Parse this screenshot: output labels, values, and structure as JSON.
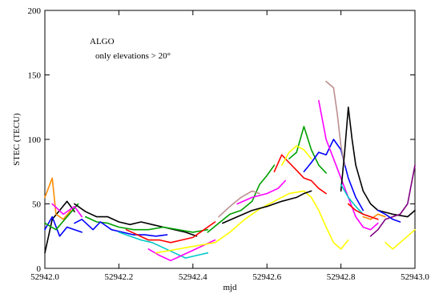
{
  "chart_data": {
    "type": "line",
    "xlabel": "mjd",
    "ylabel": "STEC (TECU)",
    "xlim": [
      52942.0,
      52943.0
    ],
    "ylim": [
      0,
      200
    ],
    "xticks": [
      "52942.0",
      "52942.2",
      "52942.4",
      "52942.6",
      "52942.8",
      "52943.0"
    ],
    "yticks": [
      "0",
      "50",
      "100",
      "150",
      "200"
    ],
    "xtick_values": [
      52942.0,
      52942.2,
      52942.4,
      52942.6,
      52942.8,
      52943.0
    ],
    "ytick_values": [
      0,
      50,
      100,
      150,
      200
    ],
    "annotations": [
      "ALGO",
      "only elevations > 20°"
    ],
    "grid": false,
    "legend": "none",
    "series": [
      {
        "color": "#000000",
        "points": [
          [
            52942.0,
            12
          ],
          [
            52942.02,
            38
          ],
          [
            52942.04,
            45
          ],
          [
            52942.06,
            52
          ],
          [
            52942.08,
            44
          ]
        ]
      },
      {
        "color": "#0000ff",
        "points": [
          [
            52942.0,
            30
          ],
          [
            52942.02,
            40
          ],
          [
            52942.04,
            25
          ],
          [
            52942.06,
            32
          ],
          [
            52942.08,
            30
          ],
          [
            52942.1,
            28
          ]
        ]
      },
      {
        "color": "#ff8c00",
        "points": [
          [
            52942.0,
            55
          ],
          [
            52942.02,
            70
          ],
          [
            52942.03,
            42
          ],
          [
            52942.05,
            38
          ],
          [
            52942.07,
            45
          ]
        ]
      },
      {
        "color": "#00a000",
        "points": [
          [
            52942.0,
            35
          ],
          [
            52942.03,
            30
          ],
          [
            52942.06,
            40
          ],
          [
            52942.09,
            50
          ]
        ]
      },
      {
        "color": "#ff00ff",
        "points": [
          [
            52942.02,
            50
          ],
          [
            52942.05,
            42
          ],
          [
            52942.08,
            48
          ],
          [
            52942.1,
            40
          ]
        ]
      },
      {
        "color": "#000000",
        "points": [
          [
            52942.08,
            50
          ],
          [
            52942.11,
            44
          ],
          [
            52942.14,
            40
          ],
          [
            52942.17,
            40
          ],
          [
            52942.2,
            36
          ],
          [
            52942.23,
            34
          ],
          [
            52942.26,
            36
          ],
          [
            52942.29,
            34
          ],
          [
            52942.32,
            32
          ],
          [
            52942.35,
            30
          ],
          [
            52942.38,
            28
          ],
          [
            52942.41,
            25
          ]
        ]
      },
      {
        "color": "#00a000",
        "points": [
          [
            52942.11,
            40
          ],
          [
            52942.14,
            36
          ],
          [
            52942.17,
            35
          ],
          [
            52942.2,
            32
          ],
          [
            52942.24,
            30
          ],
          [
            52942.28,
            30
          ],
          [
            52942.32,
            32
          ],
          [
            52942.36,
            30
          ],
          [
            52942.4,
            28
          ],
          [
            52942.44,
            30
          ]
        ]
      },
      {
        "color": "#0000ff",
        "points": [
          [
            52942.08,
            35
          ],
          [
            52942.1,
            38
          ],
          [
            52942.13,
            30
          ],
          [
            52942.15,
            36
          ],
          [
            52942.18,
            30
          ],
          [
            52942.21,
            28
          ],
          [
            52942.24,
            26
          ],
          [
            52942.27,
            26
          ],
          [
            52942.3,
            25
          ],
          [
            52942.33,
            26
          ]
        ]
      },
      {
        "color": "#00c8c8",
        "points": [
          [
            52942.2,
            28
          ],
          [
            52942.23,
            25
          ],
          [
            52942.26,
            22
          ],
          [
            52942.29,
            20
          ],
          [
            52942.32,
            16
          ],
          [
            52942.35,
            12
          ],
          [
            52942.38,
            8
          ],
          [
            52942.41,
            10
          ],
          [
            52942.44,
            12
          ]
        ]
      },
      {
        "color": "#ff0000",
        "points": [
          [
            52942.22,
            30
          ],
          [
            52942.25,
            26
          ],
          [
            52942.28,
            22
          ],
          [
            52942.31,
            22
          ],
          [
            52942.34,
            20
          ],
          [
            52942.37,
            22
          ],
          [
            52942.4,
            24
          ],
          [
            52942.43,
            30
          ],
          [
            52942.46,
            36
          ]
        ]
      },
      {
        "color": "#ff00ff",
        "points": [
          [
            52942.28,
            15
          ],
          [
            52942.31,
            10
          ],
          [
            52942.34,
            6
          ],
          [
            52942.37,
            10
          ],
          [
            52942.4,
            14
          ],
          [
            52942.43,
            18
          ],
          [
            52942.46,
            22
          ]
        ]
      },
      {
        "color": "#ffff00",
        "points": [
          [
            52942.3,
            12
          ],
          [
            52942.34,
            14
          ],
          [
            52942.38,
            16
          ],
          [
            52942.42,
            18
          ],
          [
            52942.46,
            20
          ],
          [
            52942.5,
            28
          ],
          [
            52942.54,
            38
          ],
          [
            52942.58,
            46
          ],
          [
            52942.62,
            52
          ],
          [
            52942.66,
            58
          ],
          [
            52942.7,
            60
          ],
          [
            52942.72,
            55
          ],
          [
            52942.74,
            45
          ],
          [
            52942.76,
            32
          ],
          [
            52942.78,
            20
          ],
          [
            52942.8,
            15
          ],
          [
            52942.82,
            22
          ]
        ]
      },
      {
        "color": "#00a000",
        "points": [
          [
            52942.44,
            28
          ],
          [
            52942.47,
            35
          ],
          [
            52942.5,
            42
          ],
          [
            52942.53,
            45
          ],
          [
            52942.56,
            52
          ],
          [
            52942.58,
            65
          ],
          [
            52942.6,
            72
          ],
          [
            52942.62,
            80
          ]
        ]
      },
      {
        "color": "#bc8f8f",
        "points": [
          [
            52942.47,
            40
          ],
          [
            52942.5,
            48
          ],
          [
            52942.53,
            55
          ],
          [
            52942.56,
            60
          ],
          [
            52942.58,
            58
          ]
        ]
      },
      {
        "color": "#000000",
        "points": [
          [
            52942.48,
            35
          ],
          [
            52942.52,
            40
          ],
          [
            52942.56,
            45
          ],
          [
            52942.6,
            48
          ],
          [
            52942.64,
            52
          ],
          [
            52942.68,
            55
          ],
          [
            52942.7,
            58
          ],
          [
            52942.72,
            60
          ]
        ]
      },
      {
        "color": "#ff00ff",
        "points": [
          [
            52942.52,
            50
          ],
          [
            52942.56,
            55
          ],
          [
            52942.6,
            58
          ],
          [
            52942.63,
            62
          ],
          [
            52942.65,
            68
          ]
        ]
      },
      {
        "color": "#ff0000",
        "points": [
          [
            52942.62,
            75
          ],
          [
            52942.64,
            88
          ],
          [
            52942.66,
            82
          ],
          [
            52942.68,
            76
          ],
          [
            52942.7,
            70
          ],
          [
            52942.72,
            68
          ],
          [
            52942.74,
            62
          ],
          [
            52942.76,
            58
          ]
        ]
      },
      {
        "color": "#00a000",
        "points": [
          [
            52942.66,
            85
          ],
          [
            52942.68,
            90
          ],
          [
            52942.7,
            110
          ],
          [
            52942.72,
            92
          ],
          [
            52942.74,
            80
          ],
          [
            52942.76,
            74
          ]
        ]
      },
      {
        "color": "#ffff00",
        "points": [
          [
            52942.64,
            80
          ],
          [
            52942.66,
            90
          ],
          [
            52942.68,
            95
          ],
          [
            52942.7,
            92
          ],
          [
            52942.72,
            85
          ]
        ]
      },
      {
        "color": "#0000ff",
        "points": [
          [
            52942.7,
            75
          ],
          [
            52942.72,
            82
          ],
          [
            52942.74,
            90
          ],
          [
            52942.76,
            88
          ],
          [
            52942.78,
            100
          ],
          [
            52942.8,
            92
          ],
          [
            52942.82,
            70
          ],
          [
            52942.84,
            55
          ],
          [
            52942.86,
            45
          ]
        ]
      },
      {
        "color": "#ff00ff",
        "points": [
          [
            52942.74,
            130
          ],
          [
            52942.76,
            100
          ],
          [
            52942.78,
            85
          ],
          [
            52942.8,
            70
          ],
          [
            52942.82,
            55
          ],
          [
            52942.84,
            40
          ],
          [
            52942.86,
            32
          ],
          [
            52942.88,
            30
          ],
          [
            52942.9,
            35
          ]
        ]
      },
      {
        "color": "#bc8f8f",
        "points": [
          [
            52942.76,
            145
          ],
          [
            52942.78,
            140
          ],
          [
            52942.79,
            120
          ],
          [
            52942.8,
            95
          ],
          [
            52942.81,
            80
          ]
        ]
      },
      {
        "color": "#000000",
        "points": [
          [
            52942.8,
            60
          ],
          [
            52942.81,
            90
          ],
          [
            52942.82,
            125
          ],
          [
            52942.83,
            100
          ],
          [
            52942.84,
            80
          ],
          [
            52942.86,
            60
          ],
          [
            52942.88,
            50
          ],
          [
            52942.9,
            45
          ],
          [
            52942.94,
            42
          ],
          [
            52942.98,
            40
          ],
          [
            52943.0,
            45
          ]
        ]
      },
      {
        "color": "#00c8c8",
        "points": [
          [
            52942.8,
            65
          ],
          [
            52942.82,
            55
          ],
          [
            52942.84,
            48
          ],
          [
            52942.86,
            42
          ],
          [
            52942.88,
            40
          ]
        ]
      },
      {
        "color": "#ff8c00",
        "points": [
          [
            52942.86,
            40
          ],
          [
            52942.88,
            38
          ],
          [
            52942.9,
            42
          ],
          [
            52942.92,
            40
          ]
        ]
      },
      {
        "color": "#800080",
        "points": [
          [
            52942.88,
            25
          ],
          [
            52942.9,
            30
          ],
          [
            52942.92,
            38
          ],
          [
            52942.94,
            40
          ],
          [
            52942.96,
            42
          ],
          [
            52942.98,
            50
          ],
          [
            52943.0,
            80
          ]
        ]
      },
      {
        "color": "#ffff00",
        "points": [
          [
            52942.92,
            20
          ],
          [
            52942.94,
            15
          ],
          [
            52942.96,
            20
          ],
          [
            52942.98,
            25
          ],
          [
            52943.0,
            30
          ]
        ]
      },
      {
        "color": "#ff0000",
        "points": [
          [
            52942.82,
            50
          ],
          [
            52942.84,
            45
          ],
          [
            52942.86,
            42
          ],
          [
            52942.88,
            40
          ],
          [
            52942.9,
            38
          ]
        ]
      },
      {
        "color": "#0000ff",
        "points": [
          [
            52942.9,
            45
          ],
          [
            52942.92,
            42
          ],
          [
            52942.94,
            38
          ],
          [
            52942.96,
            36
          ]
        ]
      }
    ]
  }
}
